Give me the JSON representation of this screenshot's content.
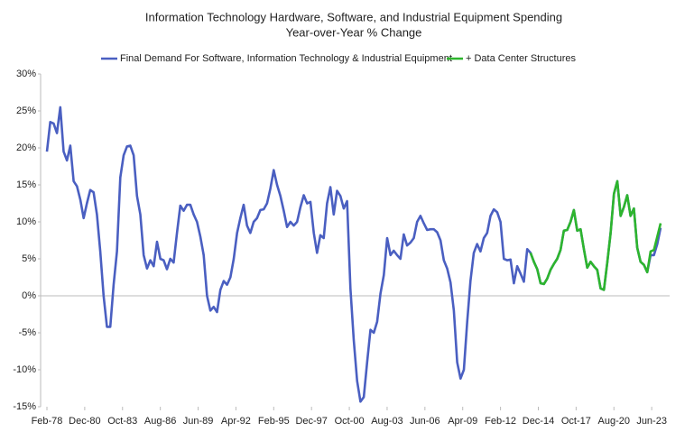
{
  "chart_data": {
    "type": "line",
    "title": "Information Technology Hardware, Software, and Industrial Equipment Spending",
    "subtitle": "Year-over-Year % Change",
    "x": [
      "Feb-78",
      "May-78",
      "Aug-78",
      "Nov-78",
      "Feb-79",
      "May-79",
      "Aug-79",
      "Nov-79",
      "Feb-80",
      "May-80",
      "Aug-80",
      "Nov-80",
      "Feb-81",
      "May-81",
      "Aug-81",
      "Nov-81",
      "Feb-82",
      "May-82",
      "Aug-82",
      "Nov-82",
      "Feb-83",
      "May-83",
      "Aug-83",
      "Nov-83",
      "Feb-84",
      "May-84",
      "Aug-84",
      "Nov-84",
      "Feb-85",
      "May-85",
      "Aug-85",
      "Nov-85",
      "Feb-86",
      "May-86",
      "Aug-86",
      "Nov-86",
      "Feb-87",
      "May-87",
      "Aug-87",
      "Nov-87",
      "Feb-88",
      "May-88",
      "Aug-88",
      "Nov-88",
      "Feb-89",
      "May-89",
      "Aug-89",
      "Nov-89",
      "Feb-90",
      "May-90",
      "Aug-90",
      "Nov-90",
      "Feb-91",
      "May-91",
      "Aug-91",
      "Nov-91",
      "Feb-92",
      "May-92",
      "Aug-92",
      "Nov-92",
      "Feb-93",
      "May-93",
      "Aug-93",
      "Nov-93",
      "Feb-94",
      "May-94",
      "Aug-94",
      "Nov-94",
      "Feb-95",
      "May-95",
      "Aug-95",
      "Nov-95",
      "Feb-96",
      "May-96",
      "Aug-96",
      "Nov-96",
      "Feb-97",
      "May-97",
      "Aug-97",
      "Nov-97",
      "Feb-98",
      "May-98",
      "Aug-98",
      "Nov-98",
      "Feb-99",
      "May-99",
      "Aug-99",
      "Nov-99",
      "Feb-00",
      "May-00",
      "Aug-00",
      "Nov-00",
      "Feb-01",
      "May-01",
      "Aug-01",
      "Nov-01",
      "Feb-02",
      "May-02",
      "Aug-02",
      "Nov-02",
      "Feb-03",
      "May-03",
      "Aug-03",
      "Nov-03",
      "Feb-04",
      "May-04",
      "Aug-04",
      "Nov-04",
      "Feb-05",
      "May-05",
      "Aug-05",
      "Nov-05",
      "Feb-06",
      "May-06",
      "Aug-06",
      "Nov-06",
      "Feb-07",
      "May-07",
      "Aug-07",
      "Nov-07",
      "Feb-08",
      "May-08",
      "Aug-08",
      "Nov-08",
      "Feb-09",
      "May-09",
      "Aug-09",
      "Nov-09",
      "Feb-10",
      "May-10",
      "Aug-10",
      "Nov-10",
      "Feb-11",
      "May-11",
      "Aug-11",
      "Nov-11",
      "Feb-12",
      "May-12",
      "Aug-12",
      "Nov-12",
      "Feb-13",
      "May-13",
      "Aug-13",
      "Nov-13",
      "Feb-14",
      "May-14",
      "Aug-14",
      "Nov-14",
      "Feb-15",
      "May-15",
      "Aug-15",
      "Nov-15",
      "Feb-16",
      "May-16",
      "Aug-16",
      "Nov-16",
      "Feb-17",
      "May-17",
      "Aug-17",
      "Nov-17",
      "Feb-18",
      "May-18",
      "Aug-18",
      "Nov-18",
      "Feb-19",
      "May-19",
      "Aug-19",
      "Nov-19",
      "Feb-20",
      "May-20",
      "Aug-20",
      "Nov-20",
      "Feb-21",
      "May-21",
      "Aug-21",
      "Nov-21",
      "Feb-22",
      "May-22",
      "Aug-22",
      "Nov-22",
      "Feb-23",
      "May-23",
      "Aug-23",
      "Nov-23",
      "Feb-24"
    ],
    "series": [
      {
        "name": "Final Demand For Software, Information Technology & Industrial Equipment",
        "color": "#4a5fc1",
        "values": [
          19.5,
          23.5,
          23.3,
          22,
          25.5,
          19.5,
          18.3,
          20.3,
          15.5,
          14.8,
          13,
          10.5,
          12.5,
          14.3,
          14,
          11,
          6,
          0,
          -4.2,
          -4.2,
          1.5,
          6,
          16,
          19,
          20.2,
          20.3,
          19,
          13.5,
          11,
          5.5,
          3.7,
          4.8,
          4,
          7.3,
          5,
          4.8,
          3.6,
          5,
          4.5,
          8.5,
          12.2,
          11.5,
          12.3,
          12.3,
          11,
          10,
          8,
          5.5,
          0,
          -2,
          -1.5,
          -2.2,
          0.8,
          2,
          1.5,
          2.5,
          5,
          8.5,
          10.5,
          12.3,
          9.5,
          8.5,
          10,
          10.5,
          11.6,
          11.7,
          12.5,
          14.5,
          17,
          15,
          13.5,
          11.5,
          9.3,
          10,
          9.5,
          10,
          12,
          13.6,
          12.5,
          12.7,
          8.5,
          5.8,
          8.2,
          7.8,
          12.5,
          14.7,
          11,
          14.2,
          13.5,
          11.8,
          12.8,
          1,
          -6,
          -11.5,
          -14.3,
          -13.7,
          -9,
          -4.6,
          -5,
          -3.5,
          0.3,
          2.8,
          7.8,
          5.5,
          6.1,
          5.5,
          5,
          8.3,
          6.8,
          7.2,
          7.8,
          10,
          10.8,
          9.8,
          8.9,
          9,
          9,
          8.6,
          7.5,
          4.8,
          3.7,
          1.8,
          -2,
          -9,
          -11.2,
          -10,
          -3.5,
          2,
          5.8,
          7,
          6,
          7.8,
          8.5,
          10.8,
          11.7,
          11.3,
          10,
          5,
          4.8,
          4.9,
          1.7,
          4,
          3,
          1.9,
          6.3,
          5.8,
          4.6,
          3.6,
          1.7,
          1.6,
          2.3,
          3.5,
          4.3,
          5,
          6.2,
          8.8,
          8.9,
          10,
          11.6,
          8.8,
          9,
          6.3,
          3.8,
          4.6,
          4,
          3.5,
          1,
          0.8,
          4.5,
          8.5,
          13.8,
          15.5,
          10.8,
          12,
          13.6,
          10.8,
          11.8,
          6.5,
          4.6,
          4.2,
          3.2,
          5.5,
          5.5,
          7,
          9.2
        ]
      },
      {
        "name": "+ Data Center Structures",
        "color": "#2db52d",
        "x": [
          "May-14",
          "Aug-14",
          "Nov-14",
          "Feb-15",
          "May-15",
          "Aug-15",
          "Nov-15",
          "Feb-16",
          "May-16",
          "Aug-16",
          "Nov-16",
          "Feb-17",
          "May-17",
          "Aug-17",
          "Nov-17",
          "Feb-18",
          "May-18",
          "Aug-18",
          "Nov-18",
          "Feb-19",
          "May-19",
          "Aug-19",
          "Nov-19",
          "Feb-20",
          "May-20",
          "Aug-20",
          "Nov-20",
          "Feb-21",
          "May-21",
          "Aug-21",
          "Nov-21",
          "Feb-22",
          "May-22",
          "Aug-22",
          "Nov-22",
          "Feb-23",
          "May-23",
          "Aug-23",
          "Nov-23",
          "Feb-24"
        ],
        "values": [
          5.8,
          4.6,
          3.6,
          1.7,
          1.6,
          2.3,
          3.5,
          4.3,
          5,
          6.2,
          8.8,
          8.9,
          10,
          11.6,
          8.8,
          9,
          6.3,
          3.8,
          4.6,
          4,
          3.5,
          1,
          0.8,
          4.5,
          8.5,
          13.8,
          15.5,
          10.8,
          12,
          13.6,
          10.8,
          11.8,
          6.5,
          4.6,
          4.2,
          3.2,
          6,
          6.2,
          8,
          9.8
        ]
      }
    ],
    "xlim": [
      "Feb-78",
      "Feb-24"
    ],
    "xticks": [
      "Feb-78",
      "Dec-80",
      "Oct-83",
      "Aug-86",
      "Jun-89",
      "Apr-92",
      "Feb-95",
      "Dec-97",
      "Oct-00",
      "Aug-03",
      "Jun-06",
      "Apr-09",
      "Feb-12",
      "Dec-14",
      "Oct-17",
      "Aug-20",
      "Jun-23"
    ],
    "ylim": [
      -15,
      30
    ],
    "yticks": [
      {
        "value": -15,
        "label": "-15%"
      },
      {
        "value": -10,
        "label": "-10%"
      },
      {
        "value": -5,
        "label": "-5%"
      },
      {
        "value": 0,
        "label": "0%"
      },
      {
        "value": 5,
        "label": "5%"
      },
      {
        "value": 10,
        "label": "10%"
      },
      {
        "value": 15,
        "label": "15%"
      },
      {
        "value": 20,
        "label": "20%"
      },
      {
        "value": 25,
        "label": "25%"
      },
      {
        "value": 30,
        "label": "30%"
      }
    ],
    "grid": false,
    "legend": "top"
  }
}
